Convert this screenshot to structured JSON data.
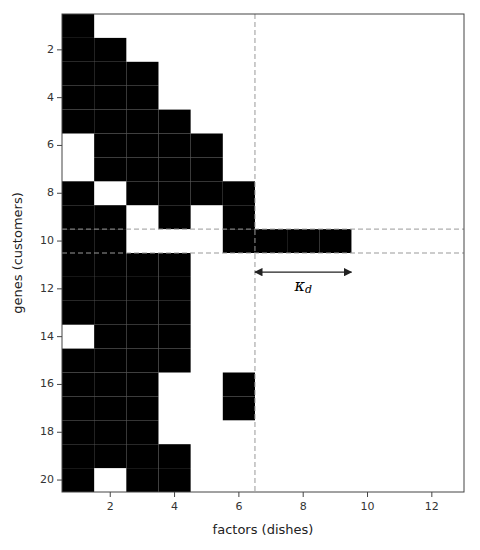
{
  "chart_data": {
    "type": "binary_matrix",
    "xlabel": "factors (dishes)",
    "ylabel": "genes (customers)",
    "xlim": [
      0.5,
      13.0
    ],
    "ylim": [
      20.5,
      0.5
    ],
    "xticks": [
      2,
      4,
      6,
      8,
      10,
      12
    ],
    "yticks": [
      2,
      4,
      6,
      8,
      10,
      12,
      14,
      16,
      18,
      20
    ],
    "grid": false,
    "color": "#000000",
    "vlines": [
      6.5
    ],
    "hlines": [
      9.5,
      10.5
    ],
    "arrows": [
      {
        "x1": 6.5,
        "x2": 9.5,
        "y": 11.3
      }
    ],
    "annotations": [
      {
        "text": "κd",
        "x": 8.0,
        "y": 11.9
      }
    ],
    "cells": [
      [
        1,
        1
      ],
      [
        2,
        1
      ],
      [
        2,
        2
      ],
      [
        3,
        1
      ],
      [
        3,
        2
      ],
      [
        3,
        3
      ],
      [
        4,
        1
      ],
      [
        4,
        2
      ],
      [
        4,
        3
      ],
      [
        5,
        1
      ],
      [
        5,
        2
      ],
      [
        5,
        3
      ],
      [
        5,
        4
      ],
      [
        6,
        2
      ],
      [
        6,
        3
      ],
      [
        6,
        4
      ],
      [
        6,
        5
      ],
      [
        7,
        2
      ],
      [
        7,
        3
      ],
      [
        7,
        4
      ],
      [
        7,
        5
      ],
      [
        8,
        1
      ],
      [
        8,
        3
      ],
      [
        8,
        4
      ],
      [
        8,
        5
      ],
      [
        8,
        6
      ],
      [
        9,
        1
      ],
      [
        9,
        2
      ],
      [
        9,
        4
      ],
      [
        9,
        6
      ],
      [
        10,
        1
      ],
      [
        10,
        2
      ],
      [
        10,
        6
      ],
      [
        10,
        7
      ],
      [
        10,
        8
      ],
      [
        10,
        9
      ],
      [
        11,
        1
      ],
      [
        11,
        2
      ],
      [
        11,
        3
      ],
      [
        11,
        4
      ],
      [
        12,
        1
      ],
      [
        12,
        2
      ],
      [
        12,
        3
      ],
      [
        12,
        4
      ],
      [
        13,
        1
      ],
      [
        13,
        2
      ],
      [
        13,
        3
      ],
      [
        13,
        4
      ],
      [
        14,
        2
      ],
      [
        14,
        3
      ],
      [
        14,
        4
      ],
      [
        15,
        1
      ],
      [
        15,
        2
      ],
      [
        15,
        3
      ],
      [
        15,
        4
      ],
      [
        16,
        1
      ],
      [
        16,
        2
      ],
      [
        16,
        3
      ],
      [
        16,
        6
      ],
      [
        17,
        1
      ],
      [
        17,
        2
      ],
      [
        17,
        3
      ],
      [
        17,
        6
      ],
      [
        18,
        1
      ],
      [
        18,
        2
      ],
      [
        18,
        3
      ],
      [
        19,
        1
      ],
      [
        19,
        2
      ],
      [
        19,
        3
      ],
      [
        19,
        4
      ],
      [
        20,
        1
      ],
      [
        20,
        3
      ],
      [
        20,
        4
      ]
    ]
  }
}
